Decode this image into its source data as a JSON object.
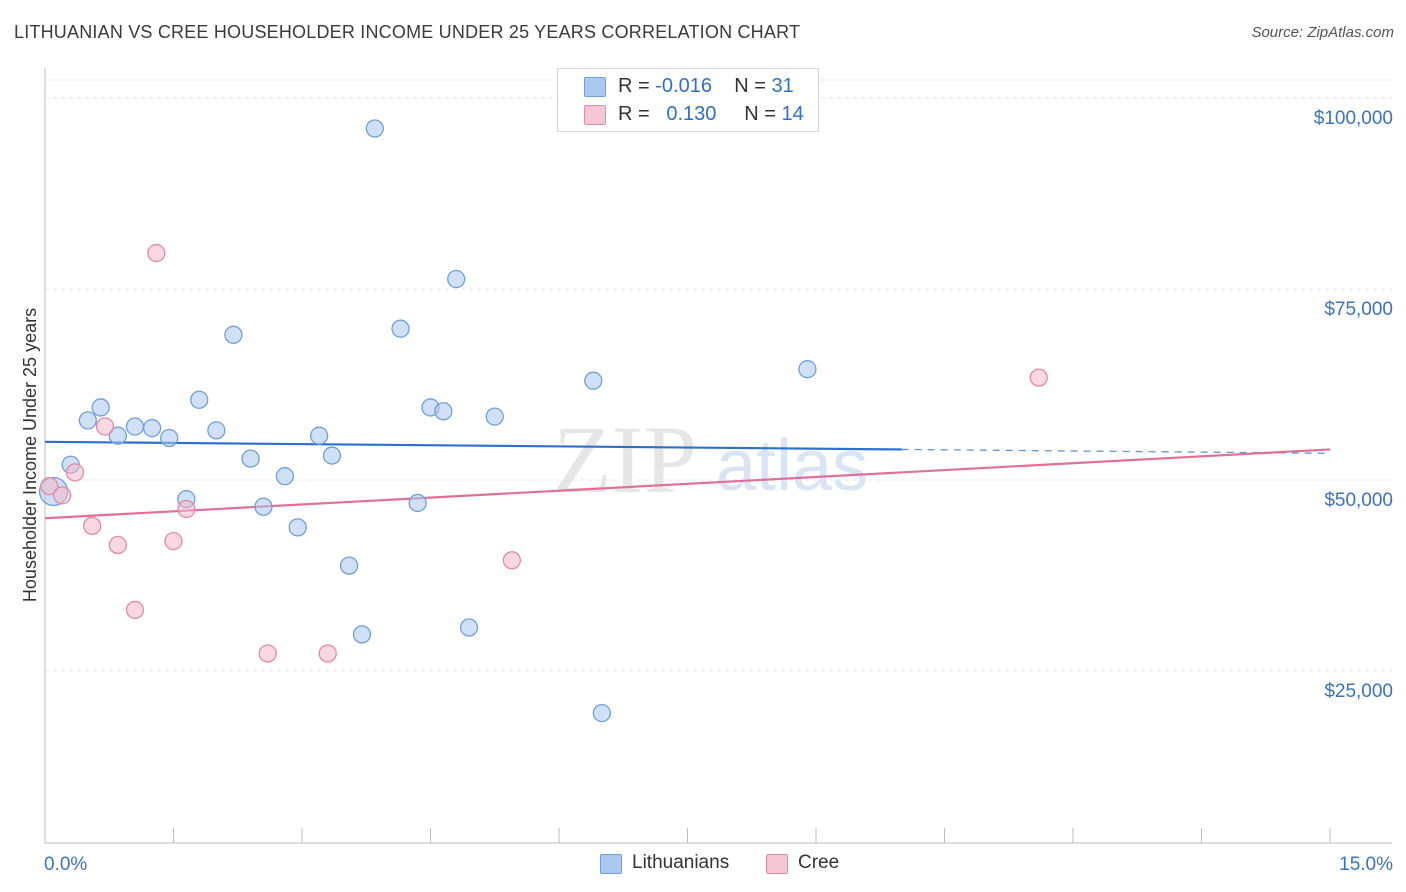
{
  "title": "LITHUANIAN VS CREE HOUSEHOLDER INCOME UNDER 25 YEARS CORRELATION CHART",
  "source": "Source: ZipAtlas.com",
  "watermark": {
    "zip": "ZIP",
    "atlas": "atlas"
  },
  "legend": {
    "r_label": "R =",
    "n_label": "N =",
    "rows": [
      {
        "r": "-0.016",
        "n": "31",
        "color": "#aac8f0"
      },
      {
        "r": "0.130",
        "n": "14",
        "color": "#f6b8cb"
      }
    ]
  },
  "chart_data": {
    "type": "scatter",
    "title": "LITHUANIAN VS CREE HOUSEHOLDER INCOME UNDER 25 YEARS CORRELATION CHART",
    "xlabel": "",
    "ylabel": "Householder Income Under 25 years",
    "xlim": [
      0,
      15
    ],
    "ylim": [
      2500,
      103000
    ],
    "x_tick_labels": [
      "0.0%",
      "15.0%"
    ],
    "y_ticks": [
      {
        "value": 25000,
        "label": "$25,000"
      },
      {
        "value": 50000,
        "label": "$50,000"
      },
      {
        "value": 75000,
        "label": "$75,000"
      },
      {
        "value": 100000,
        "label": "$100,000"
      }
    ],
    "grid": true,
    "legend_position": "top-center",
    "series": [
      {
        "name": "Lithuanians",
        "color": "#aac8f0",
        "stroke": "#6f9fdc",
        "trend": {
          "x0": 0,
          "y0": 55000,
          "x1": 10.0,
          "y1": 54000,
          "dash_to": 15,
          "dash_y": 53500,
          "color": "#2d6fcd"
        },
        "points": [
          [
            0.1,
            48500
          ],
          [
            0.3,
            52000
          ],
          [
            0.5,
            57800
          ],
          [
            0.65,
            59500
          ],
          [
            0.85,
            55800
          ],
          [
            1.05,
            57000
          ],
          [
            1.25,
            56800
          ],
          [
            1.45,
            55500
          ],
          [
            1.65,
            47500
          ],
          [
            1.8,
            60500
          ],
          [
            2.0,
            56500
          ],
          [
            2.2,
            69000
          ],
          [
            2.4,
            52800
          ],
          [
            2.55,
            46500
          ],
          [
            2.8,
            50500
          ],
          [
            2.95,
            43800
          ],
          [
            3.2,
            55800
          ],
          [
            3.35,
            53200
          ],
          [
            3.55,
            38800
          ],
          [
            3.7,
            29800
          ],
          [
            3.85,
            96000
          ],
          [
            4.15,
            69800
          ],
          [
            4.35,
            47000
          ],
          [
            4.5,
            59500
          ],
          [
            4.65,
            59000
          ],
          [
            4.8,
            76300
          ],
          [
            4.95,
            30700
          ],
          [
            5.25,
            58300
          ],
          [
            6.4,
            63000
          ],
          [
            6.5,
            19500
          ],
          [
            8.9,
            64500
          ]
        ],
        "large_point": [
          0.1,
          48500
        ]
      },
      {
        "name": "Cree",
        "color": "#f6b8cb",
        "stroke": "#e48aa6",
        "trend": {
          "x0": 0,
          "y0": 45000,
          "x1": 15,
          "y1": 54000,
          "color": "#e07098"
        },
        "points": [
          [
            0.05,
            49200
          ],
          [
            0.2,
            48000
          ],
          [
            0.35,
            51000
          ],
          [
            0.55,
            44000
          ],
          [
            0.7,
            57000
          ],
          [
            0.85,
            41500
          ],
          [
            1.05,
            33000
          ],
          [
            1.3,
            79700
          ],
          [
            1.5,
            42000
          ],
          [
            1.65,
            46200
          ],
          [
            2.6,
            27300
          ],
          [
            3.3,
            27300
          ],
          [
            5.45,
            39500
          ],
          [
            11.6,
            63400
          ]
        ]
      }
    ]
  },
  "bottom_legend": [
    {
      "label": "Lithuanians",
      "color": "#aac8f0"
    },
    {
      "label": "Cree",
      "color": "#f6b8cb"
    }
  ]
}
